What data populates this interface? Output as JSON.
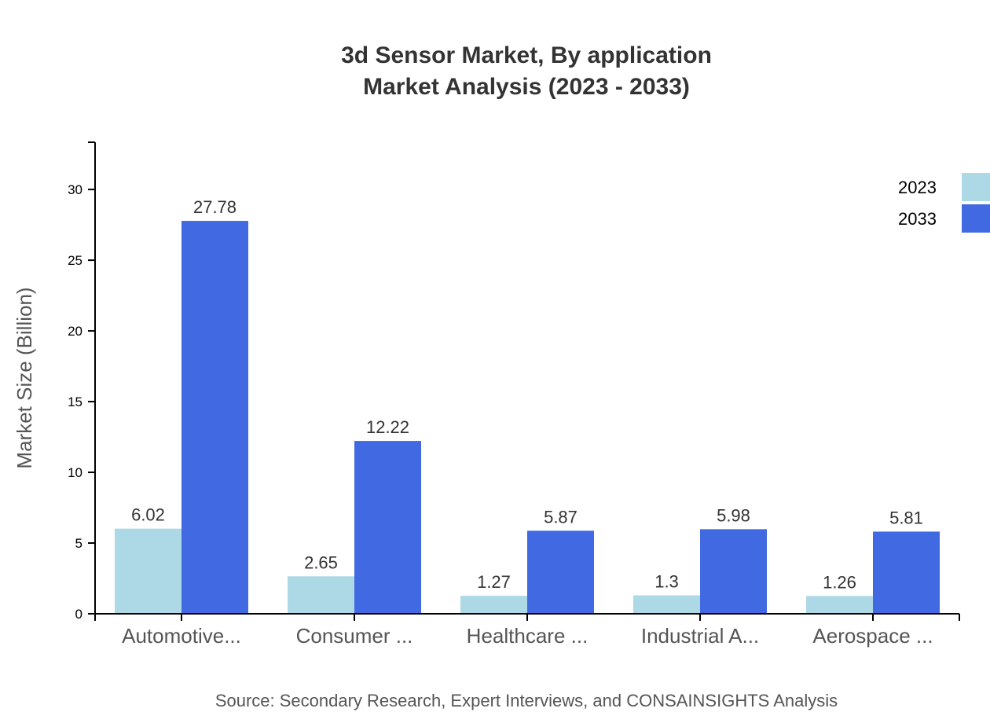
{
  "chart_data": {
    "type": "bar",
    "title": [
      "3d Sensor Market, By application",
      "Market Analysis (2023 - 2033)"
    ],
    "xlabel": "",
    "ylabel": "Market Size (Billion)",
    "categories": [
      "Automotive...",
      "Consumer ...",
      "Healthcare ...",
      "Industrial A...",
      "Aerospace ..."
    ],
    "series": [
      {
        "name": "2023",
        "color": "#add8e6",
        "values": [
          6.02,
          2.65,
          1.27,
          1.3,
          1.26
        ]
      },
      {
        "name": "2033",
        "color": "#4169e1",
        "values": [
          27.78,
          12.22,
          5.87,
          5.98,
          5.81
        ]
      }
    ],
    "ylim": [
      0,
      33.34
    ],
    "yticks": [
      0,
      5,
      10,
      15,
      20,
      25,
      30
    ],
    "grid": false,
    "legend_position": "top-right",
    "source": "Source: Secondary Research, Expert Interviews, and CONSAINSIGHTS Analysis"
  }
}
